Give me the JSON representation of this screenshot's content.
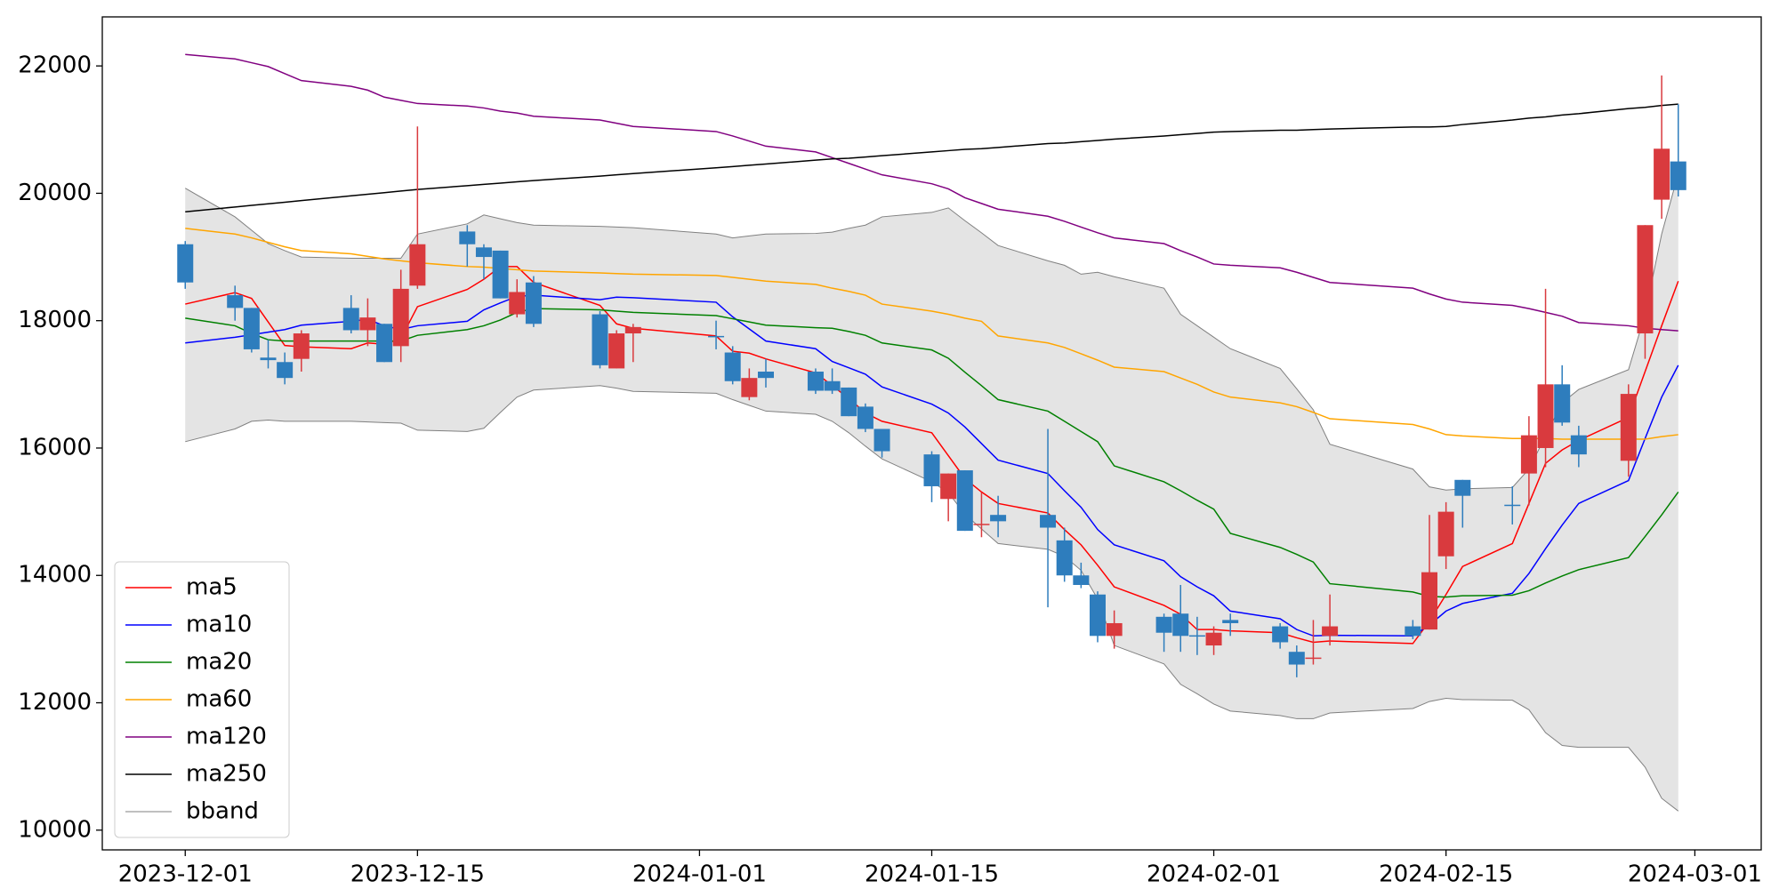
{
  "chart_data": {
    "type": "candlestick",
    "x": [
      "2023-12-01",
      "2023-12-04",
      "2023-12-05",
      "2023-12-06",
      "2023-12-07",
      "2023-12-08",
      "2023-12-11",
      "2023-12-12",
      "2023-12-13",
      "2023-12-14",
      "2023-12-15",
      "2023-12-18",
      "2023-12-19",
      "2023-12-20",
      "2023-12-21",
      "2023-12-22",
      "2023-12-26",
      "2023-12-27",
      "2023-12-28",
      "2024-01-02",
      "2024-01-03",
      "2024-01-04",
      "2024-01-05",
      "2024-01-08",
      "2024-01-09",
      "2024-01-10",
      "2024-01-11",
      "2024-01-12",
      "2024-01-15",
      "2024-01-16",
      "2024-01-17",
      "2024-01-18",
      "2024-01-19",
      "2024-01-22",
      "2024-01-23",
      "2024-01-24",
      "2024-01-25",
      "2024-01-26",
      "2024-01-29",
      "2024-01-30",
      "2024-01-31",
      "2024-02-01",
      "2024-02-02",
      "2024-02-05",
      "2024-02-06",
      "2024-02-07",
      "2024-02-08",
      "2024-02-13",
      "2024-02-14",
      "2024-02-15",
      "2024-02-16",
      "2024-02-19",
      "2024-02-20",
      "2024-02-21",
      "2024-02-22",
      "2024-02-23",
      "2024-02-26",
      "2024-02-27",
      "2024-02-28",
      "2024-02-29"
    ],
    "open": [
      19200,
      18400,
      18200,
      17420,
      17350,
      17400,
      18200,
      17850,
      17950,
      17600,
      18550,
      19400,
      19150,
      19100,
      18100,
      18600,
      18100,
      17250,
      17800,
      17760,
      17500,
      16800,
      17200,
      17200,
      17050,
      16950,
      16650,
      16300,
      15900,
      15200,
      15650,
      14790,
      14950,
      14950,
      14550,
      14000,
      13700,
      13050,
      13350,
      13400,
      13060,
      12900,
      13300,
      13200,
      12800,
      12690,
      13050,
      13200,
      13150,
      14300,
      15500,
      15110,
      15600,
      16000,
      17000,
      16200,
      15800,
      17800,
      19900,
      20500
    ],
    "high": [
      19250,
      18550,
      18200,
      17700,
      17500,
      17850,
      18400,
      18350,
      17950,
      18800,
      21050,
      19500,
      19200,
      19100,
      18650,
      18700,
      18150,
      17850,
      17950,
      18000,
      17600,
      17250,
      17400,
      17250,
      17250,
      16950,
      16700,
      16300,
      15950,
      15600,
      15650,
      15300,
      15250,
      16300,
      14750,
      14200,
      13750,
      13450,
      13400,
      13850,
      13350,
      13200,
      13400,
      13250,
      12900,
      13300,
      13700,
      13300,
      14950,
      15150,
      15500,
      15400,
      16500,
      18500,
      17300,
      16350,
      17000,
      19500,
      21850,
      21400
    ],
    "low": [
      18500,
      18000,
      17500,
      17250,
      17000,
      17200,
      17800,
      17600,
      17350,
      17350,
      18500,
      18850,
      18650,
      18350,
      18050,
      17900,
      17250,
      17250,
      17350,
      17550,
      17000,
      16750,
      16950,
      16850,
      16850,
      16500,
      16250,
      15850,
      15150,
      14850,
      14700,
      14600,
      14600,
      13500,
      13900,
      13800,
      12950,
      12850,
      12800,
      12800,
      12750,
      12750,
      13050,
      12850,
      12400,
      12600,
      12900,
      13000,
      13150,
      14100,
      14750,
      14800,
      15100,
      15700,
      16350,
      15700,
      15550,
      17400,
      19600,
      19950
    ],
    "close": [
      18600,
      18200,
      17550,
      17380,
      17100,
      17800,
      17850,
      18050,
      17350,
      18500,
      19200,
      19200,
      19000,
      18350,
      18450,
      17950,
      17300,
      17800,
      17900,
      17740,
      17050,
      17100,
      17100,
      16900,
      16900,
      16500,
      16300,
      15950,
      15400,
      15600,
      14700,
      14810,
      14850,
      14750,
      14000,
      13850,
      13050,
      13250,
      13100,
      13050,
      13040,
      13100,
      13250,
      12950,
      12600,
      12710,
      13200,
      13050,
      14050,
      15000,
      15250,
      15090,
      16200,
      17000,
      16400,
      15900,
      16850,
      19500,
      20700,
      20050
    ],
    "up_color": "#d93a3e",
    "down_color": "#2e7dbd",
    "series": [
      {
        "name": "ma5",
        "color": "#ff0000",
        "values": [
          18260,
          18440,
          18350,
          17980,
          17610,
          17590,
          17560,
          17650,
          17630,
          17720,
          18220,
          18490,
          18650,
          18850,
          18850,
          18600,
          18240,
          17950,
          17880,
          17760,
          17520,
          17490,
          17400,
          17180,
          16980,
          16780,
          16550,
          16420,
          16240,
          15880,
          15520,
          15310,
          15130,
          14980,
          14720,
          14480,
          14160,
          13820,
          13530,
          13390,
          13150,
          13150,
          13130,
          13100,
          13020,
          12950,
          12970,
          12930,
          13280,
          13700,
          14140,
          14500,
          15130,
          15760,
          15970,
          16120,
          16480,
          17200,
          17920,
          18620
        ]
      },
      {
        "name": "ma10",
        "color": "#0000ff",
        "values": [
          17650,
          17740,
          17780,
          17820,
          17860,
          17930,
          17990,
          18020,
          17920,
          17860,
          17920,
          17990,
          18170,
          18280,
          18380,
          18400,
          18330,
          18370,
          18360,
          18290,
          18060,
          17870,
          17680,
          17560,
          17360,
          17260,
          17160,
          16960,
          16690,
          16550,
          16330,
          16070,
          15810,
          15600,
          15330,
          15070,
          14720,
          14480,
          14230,
          13980,
          13820,
          13680,
          13440,
          13320,
          13150,
          13050,
          13060,
          13050,
          13220,
          13440,
          13560,
          13720,
          14030,
          14420,
          14790,
          15130,
          15490,
          16150,
          16800,
          17300
        ]
      },
      {
        "name": "ma20",
        "color": "#008000",
        "values": [
          18040,
          17920,
          17800,
          17700,
          17680,
          17680,
          17680,
          17680,
          17680,
          17680,
          17770,
          17860,
          17920,
          18010,
          18130,
          18190,
          18170,
          18150,
          18130,
          18080,
          18030,
          17980,
          17930,
          17890,
          17880,
          17830,
          17770,
          17650,
          17540,
          17410,
          17190,
          16980,
          16760,
          16580,
          16420,
          16260,
          16100,
          15720,
          15470,
          15330,
          15180,
          15040,
          14660,
          14440,
          14330,
          14210,
          13870,
          13740,
          13670,
          13660,
          13680,
          13690,
          13760,
          13880,
          13990,
          14090,
          14280,
          14610,
          14950,
          15310
        ]
      },
      {
        "name": "ma60",
        "color": "#ffa500",
        "values": [
          19450,
          19360,
          19300,
          19230,
          19160,
          19100,
          19050,
          19010,
          18970,
          18940,
          18910,
          18850,
          18840,
          18820,
          18800,
          18780,
          18750,
          18740,
          18730,
          18710,
          18680,
          18650,
          18620,
          18570,
          18510,
          18460,
          18400,
          18260,
          18150,
          18100,
          18040,
          17990,
          17760,
          17650,
          17580,
          17480,
          17380,
          17270,
          17200,
          17100,
          17000,
          16880,
          16800,
          16710,
          16650,
          16560,
          16460,
          16370,
          16300,
          16210,
          16190,
          16150,
          16150,
          16150,
          16140,
          16140,
          16140,
          16140,
          16180,
          16210
        ]
      },
      {
        "name": "ma120",
        "color": "#800080",
        "values": [
          22180,
          22110,
          22050,
          21990,
          21880,
          21770,
          21680,
          21620,
          21510,
          21460,
          21410,
          21370,
          21340,
          21290,
          21260,
          21210,
          21150,
          21100,
          21050,
          20970,
          20900,
          20820,
          20740,
          20650,
          20560,
          20470,
          20380,
          20290,
          20150,
          20070,
          19930,
          19840,
          19750,
          19640,
          19560,
          19470,
          19380,
          19300,
          19210,
          19100,
          19000,
          18890,
          18870,
          18830,
          18760,
          18680,
          18600,
          18510,
          18420,
          18340,
          18290,
          18240,
          18190,
          18130,
          18070,
          17970,
          17920,
          17880,
          17860,
          17840
        ]
      },
      {
        "name": "ma250",
        "color": "#000000",
        "values": [
          19710,
          19785,
          19810,
          19835,
          19860,
          19885,
          19960,
          19985,
          20010,
          20035,
          20060,
          20120,
          20140,
          20160,
          20180,
          20200,
          20270,
          20290,
          20310,
          20400,
          20420,
          20440,
          20460,
          20520,
          20540,
          20550,
          20570,
          20590,
          20650,
          20670,
          20690,
          20700,
          20720,
          20780,
          20790,
          20810,
          20830,
          20850,
          20900,
          20920,
          20940,
          20960,
          20970,
          20990,
          20990,
          21000,
          21010,
          21040,
          21040,
          21050,
          21080,
          21150,
          21180,
          21200,
          21230,
          21250,
          21330,
          21350,
          21380,
          21400
        ]
      }
    ],
    "band": {
      "name": "bband",
      "color": "#808080",
      "fill": "#e4e4e4",
      "upper": [
        20080,
        19630,
        19420,
        19210,
        19100,
        19000,
        18980,
        18980,
        18980,
        18980,
        19360,
        19520,
        19660,
        19600,
        19540,
        19500,
        19480,
        19470,
        19460,
        19360,
        19300,
        19330,
        19360,
        19370,
        19390,
        19450,
        19500,
        19630,
        19700,
        19770,
        19570,
        19380,
        19180,
        18940,
        18870,
        18730,
        18760,
        18690,
        18510,
        18100,
        17920,
        17740,
        17560,
        17250,
        16930,
        16600,
        16060,
        15670,
        15390,
        15340,
        15360,
        15380,
        15670,
        16190,
        16710,
        16920,
        17230,
        18100,
        19360,
        20310
      ],
      "lower": [
        16100,
        16300,
        16420,
        16440,
        16420,
        16420,
        16420,
        16410,
        16400,
        16390,
        16280,
        16260,
        16310,
        16560,
        16800,
        16910,
        16980,
        16940,
        16890,
        16860,
        16760,
        16670,
        16580,
        16530,
        16420,
        16240,
        16030,
        15830,
        15470,
        15300,
        14960,
        14730,
        14500,
        14410,
        14300,
        14080,
        13630,
        12900,
        12610,
        12290,
        12140,
        11980,
        11870,
        11800,
        11750,
        11750,
        11840,
        11910,
        12020,
        12070,
        12050,
        12040,
        11890,
        11530,
        11330,
        11300,
        11300,
        10990,
        10500,
        10300
      ]
    },
    "xlim": [
      "2023-11-26",
      "2024-03-05"
    ],
    "xticks": [
      "2023-12-01",
      "2023-12-15",
      "2024-01-01",
      "2024-01-15",
      "2024-02-01",
      "2024-02-15",
      "2024-03-01"
    ],
    "ylim": [
      9690,
      22770
    ],
    "yticks": [
      10000,
      12000,
      14000,
      16000,
      18000,
      20000,
      22000
    ],
    "legend": "lower left"
  }
}
